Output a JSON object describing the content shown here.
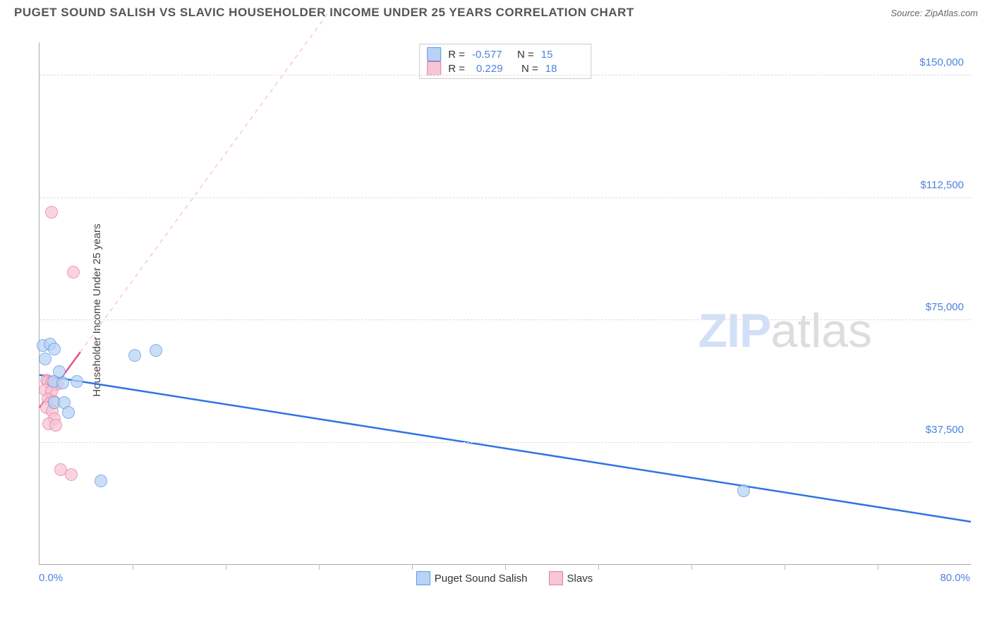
{
  "title": "PUGET SOUND SALISH VS SLAVIC HOUSEHOLDER INCOME UNDER 25 YEARS CORRELATION CHART",
  "source": "Source: ZipAtlas.com",
  "watermark": {
    "part1": "ZIP",
    "part2": "atlas"
  },
  "chart": {
    "type": "scatter",
    "ylabel": "Householder Income Under 25 years",
    "ylabel_fontsize": 15,
    "xlim": [
      0,
      80
    ],
    "ylim": [
      0,
      160000
    ],
    "x_axis": {
      "min_label": "0.0%",
      "max_label": "80.0%",
      "label_color": "#4d82e0",
      "tick_positions_pct": [
        10,
        20,
        30,
        40,
        50,
        60,
        70,
        80,
        90
      ]
    },
    "y_ticks": [
      {
        "value": 37500,
        "label": "$37,500"
      },
      {
        "value": 75000,
        "label": "$75,000"
      },
      {
        "value": 112500,
        "label": "$112,500"
      },
      {
        "value": 150000,
        "label": "$150,000"
      }
    ],
    "ytick_color": "#4d82e0",
    "grid_color": "#dddddd",
    "background_color": "#ffffff",
    "series": [
      {
        "id": "salish",
        "name": "Puget Sound Salish",
        "color_fill": "#b9d3f4",
        "color_stroke": "#5d95e8",
        "trend_color": "#2f74e3",
        "trend_width": 2.5,
        "r": "-0.577",
        "n": "15",
        "dashed_ext_x": [
          5.5,
          80
        ],
        "dashed_ext_y": [
          90000,
          -10000
        ],
        "trend_line": {
          "x1": 0,
          "y1": 58000,
          "x2": 80,
          "y2": 13000
        },
        "points": [
          {
            "x": 0.3,
            "y": 67000
          },
          {
            "x": 0.9,
            "y": 67500
          },
          {
            "x": 1.3,
            "y": 66000
          },
          {
            "x": 0.5,
            "y": 63000
          },
          {
            "x": 1.7,
            "y": 59000
          },
          {
            "x": 1.2,
            "y": 56000
          },
          {
            "x": 2.0,
            "y": 55500
          },
          {
            "x": 3.2,
            "y": 56000
          },
          {
            "x": 1.3,
            "y": 49500
          },
          {
            "x": 2.1,
            "y": 49500
          },
          {
            "x": 2.5,
            "y": 46500
          },
          {
            "x": 8.2,
            "y": 64000
          },
          {
            "x": 10.0,
            "y": 65500
          },
          {
            "x": 5.3,
            "y": 25500
          },
          {
            "x": 60.5,
            "y": 22500
          }
        ]
      },
      {
        "id": "slavs",
        "name": "Slavs",
        "color_fill": "#f7c6d5",
        "color_stroke": "#e87aa0",
        "trend_color": "#e85285",
        "trend_width": 2.5,
        "r": "0.229",
        "n": "18",
        "dashed_extension": {
          "x1": 3.5,
          "y1": 65000,
          "x2": 25,
          "y2": 170000
        },
        "trend_line": {
          "x1": 0,
          "y1": 48000,
          "x2": 3.5,
          "y2": 65000
        },
        "points": [
          {
            "x": 1.0,
            "y": 108000
          },
          {
            "x": 2.9,
            "y": 89500
          },
          {
            "x": 0.6,
            "y": 56500
          },
          {
            "x": 0.7,
            "y": 56000
          },
          {
            "x": 1.0,
            "y": 55800
          },
          {
            "x": 1.2,
            "y": 55000
          },
          {
            "x": 1.5,
            "y": 55200
          },
          {
            "x": 0.5,
            "y": 53500
          },
          {
            "x": 1.0,
            "y": 53000
          },
          {
            "x": 0.7,
            "y": 50500
          },
          {
            "x": 1.2,
            "y": 50000
          },
          {
            "x": 0.6,
            "y": 48000
          },
          {
            "x": 1.1,
            "y": 47000
          },
          {
            "x": 1.3,
            "y": 44500
          },
          {
            "x": 0.8,
            "y": 43000
          },
          {
            "x": 1.4,
            "y": 42500
          },
          {
            "x": 1.8,
            "y": 29000
          },
          {
            "x": 2.7,
            "y": 27500
          }
        ]
      }
    ]
  }
}
